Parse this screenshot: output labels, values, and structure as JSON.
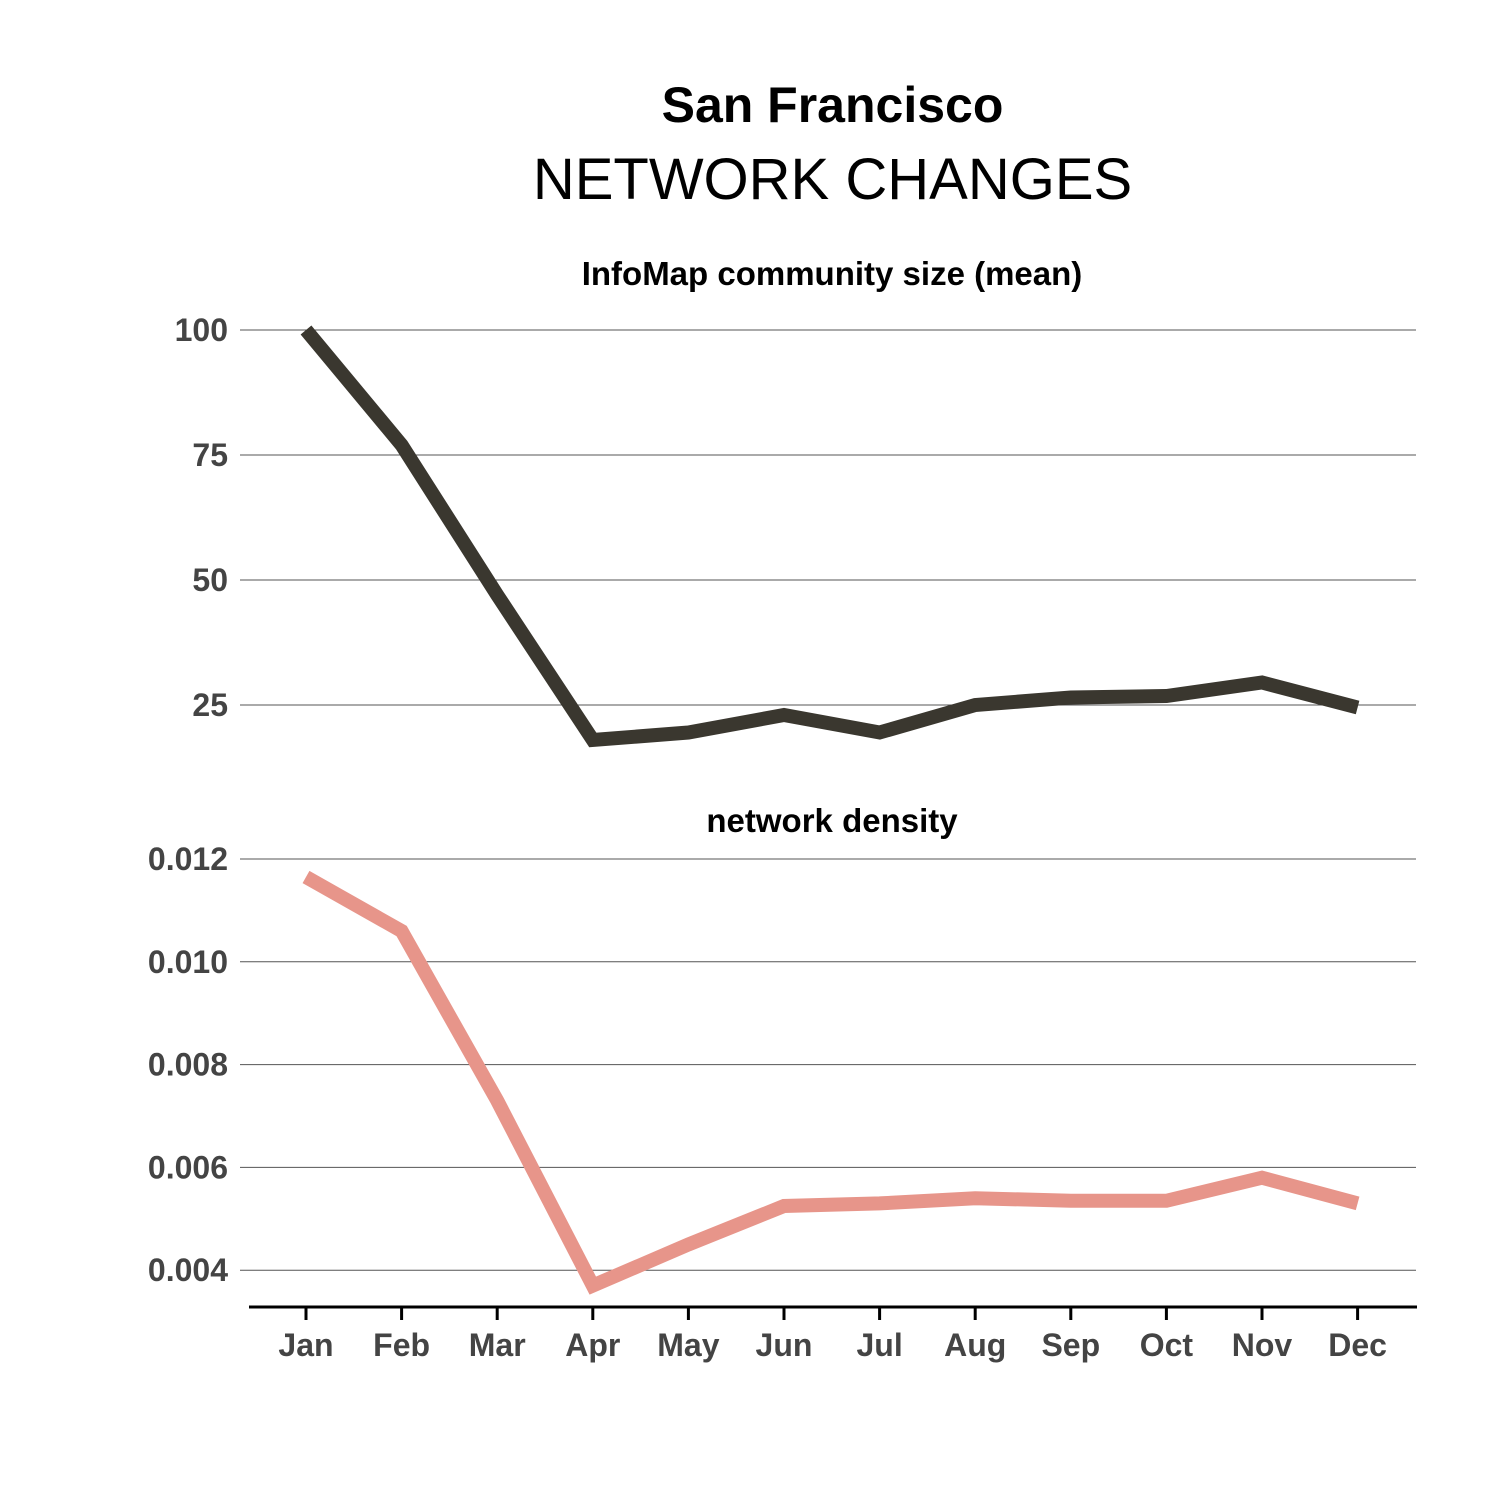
{
  "title": "San Francisco",
  "subtitle": "NETWORK CHANGES",
  "colors": {
    "series1": "#3a372f",
    "series2": "#e7958a",
    "grid": "#555555",
    "axis": "#000000"
  },
  "chart_data": [
    {
      "type": "line",
      "title": "InfoMap community size (mean)",
      "categories": [
        "Jan",
        "Feb",
        "Mar",
        "Apr",
        "May",
        "Jun",
        "Jul",
        "Aug",
        "Sep",
        "Oct",
        "Nov",
        "Dec"
      ],
      "values": [
        100,
        77,
        47,
        18,
        19.5,
        23,
        19.5,
        25,
        26.5,
        26.8,
        29.5,
        24.5
      ],
      "yticks": [
        100,
        75,
        50,
        25
      ],
      "ytick_labels": [
        "100",
        "75",
        "50",
        "25"
      ],
      "ylim": [
        17.5,
        101
      ],
      "grid": true
    },
    {
      "type": "line",
      "title": "network density",
      "categories": [
        "Jan",
        "Feb",
        "Mar",
        "Apr",
        "May",
        "Jun",
        "Jul",
        "Aug",
        "Sep",
        "Oct",
        "Nov",
        "Dec"
      ],
      "values": [
        0.01165,
        0.0106,
        0.0073,
        0.0037,
        0.0045,
        0.00525,
        0.0053,
        0.0054,
        0.00535,
        0.00535,
        0.0058,
        0.0053
      ],
      "yticks": [
        0.012,
        0.01,
        0.008,
        0.006,
        0.004
      ],
      "ytick_labels": [
        "0.012",
        "0.010",
        "0.008",
        "0.006",
        "0.004"
      ],
      "ylim": [
        0.0036,
        0.012
      ],
      "grid": true
    }
  ]
}
